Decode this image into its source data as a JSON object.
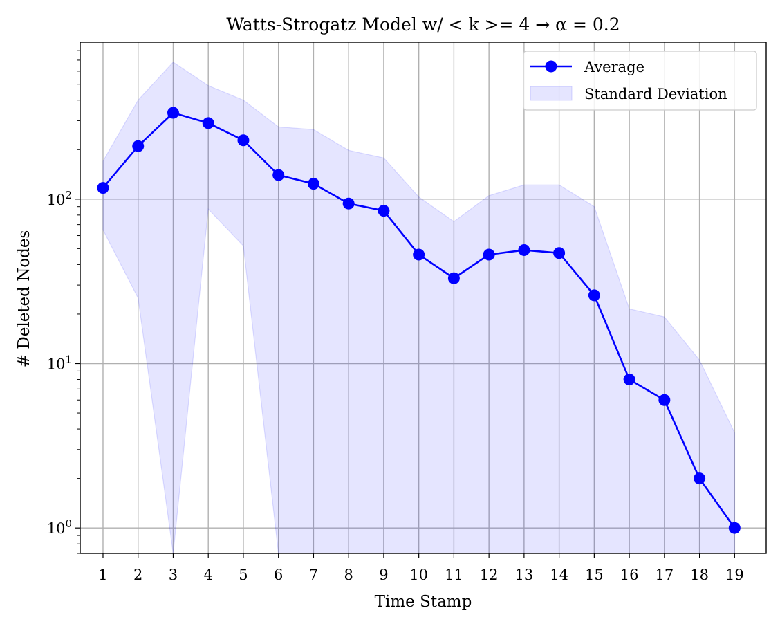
{
  "chart_data": {
    "type": "line",
    "title": "Watts-Strogatz Model w/ < k >= 4 → α = 0.2",
    "xlabel": "Time Stamp",
    "ylabel": "# Deleted Nodes",
    "yscale": "log",
    "ylim": [
      0.7,
      900
    ],
    "xlim": [
      0.35,
      19.9
    ],
    "grid": true,
    "legend_position": "top-right",
    "x": [
      1,
      2,
      3,
      4,
      5,
      6,
      7,
      8,
      9,
      10,
      11,
      12,
      13,
      14,
      15,
      16,
      17,
      18,
      19
    ],
    "x_ticks": [
      "1",
      "2",
      "3",
      "4",
      "5",
      "6",
      "7",
      "8",
      "9",
      "10",
      "11",
      "12",
      "13",
      "14",
      "15",
      "16",
      "17",
      "18",
      "19"
    ],
    "y_ticks": [
      {
        "value": 1,
        "base": "10",
        "exp": "0"
      },
      {
        "value": 10,
        "base": "10",
        "exp": "1"
      },
      {
        "value": 100,
        "base": "10",
        "exp": "2"
      }
    ],
    "series": [
      {
        "name": "Average",
        "color": "#0000ff",
        "values": [
          117,
          210,
          335,
          290,
          228,
          140,
          124,
          94,
          85,
          46,
          33,
          46,
          49,
          47,
          26,
          8,
          6,
          2,
          1
        ]
      }
    ],
    "band": {
      "name": "Standard Deviation",
      "color": "#0000ff",
      "upper": [
        170,
        400,
        680,
        490,
        400,
        275,
        265,
        198,
        178,
        103,
        73,
        105,
        122,
        122,
        90,
        21.5,
        19.2,
        10.5,
        3.8
      ],
      "lower": [
        65,
        25,
        0.7,
        87,
        52,
        0.7,
        0.7,
        0.7,
        0.7,
        0.7,
        0.7,
        0.7,
        0.7,
        0.7,
        0.7,
        0.7,
        0.7,
        0.7,
        0.7
      ]
    }
  }
}
